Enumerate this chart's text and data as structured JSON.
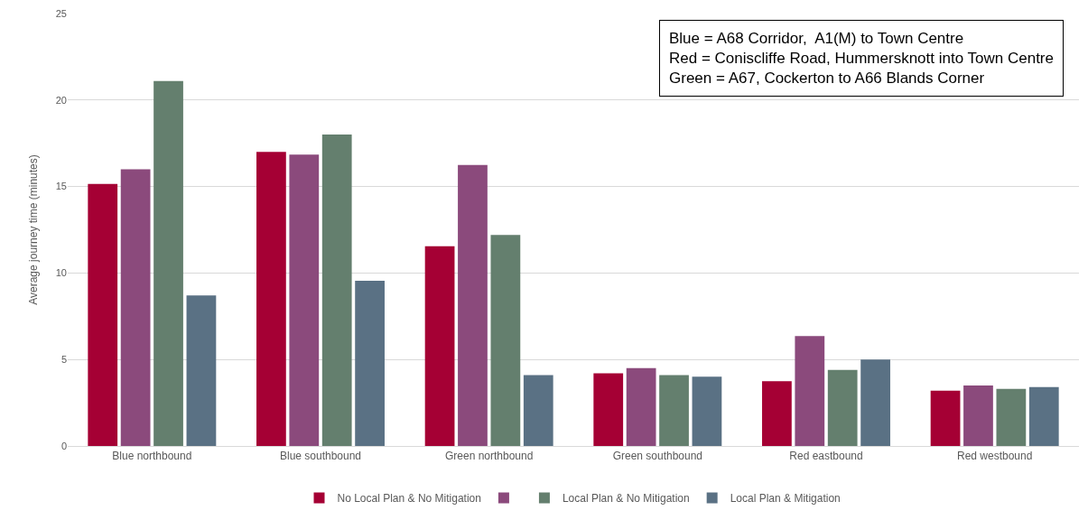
{
  "chart_data": {
    "type": "bar",
    "ylabel": "Average journey time (minutes)",
    "categories": [
      "Blue northbound",
      "Blue southbound",
      "Green northbound",
      "Green southbound",
      "Red eastbound",
      "Red westbound"
    ],
    "series": [
      {
        "name": "No Local Plan & No Mitigation",
        "color": "#a50034",
        "values": [
          15.15,
          17.0,
          11.55,
          4.2,
          3.75,
          3.2
        ]
      },
      {
        "color": "#8b4a7c",
        "values": [
          16.0,
          16.85,
          16.25,
          4.5,
          6.35,
          3.5
        ]
      },
      {
        "name": "Local Plan & No Mitigation",
        "color": "#647f6e",
        "values": [
          21.1,
          18.0,
          12.2,
          4.1,
          4.4,
          3.3
        ]
      },
      {
        "name": "Local Plan & Mitigation",
        "color": "#5a7184",
        "values": [
          8.7,
          9.55,
          4.1,
          4.0,
          5.0,
          3.4
        ]
      }
    ],
    "ylim": [
      0,
      25
    ],
    "yticks": [
      0,
      5,
      10,
      15,
      20,
      25
    ],
    "grid": "y",
    "legend": "bottom",
    "annotations": [
      "Blue = A68 Corridor,  A1(M) to Town Centre\nRed = Coniscliffe Road, Hummersknott into Town Centre\nGreen = A67, Cockerton to A66 Blands Corner"
    ]
  }
}
